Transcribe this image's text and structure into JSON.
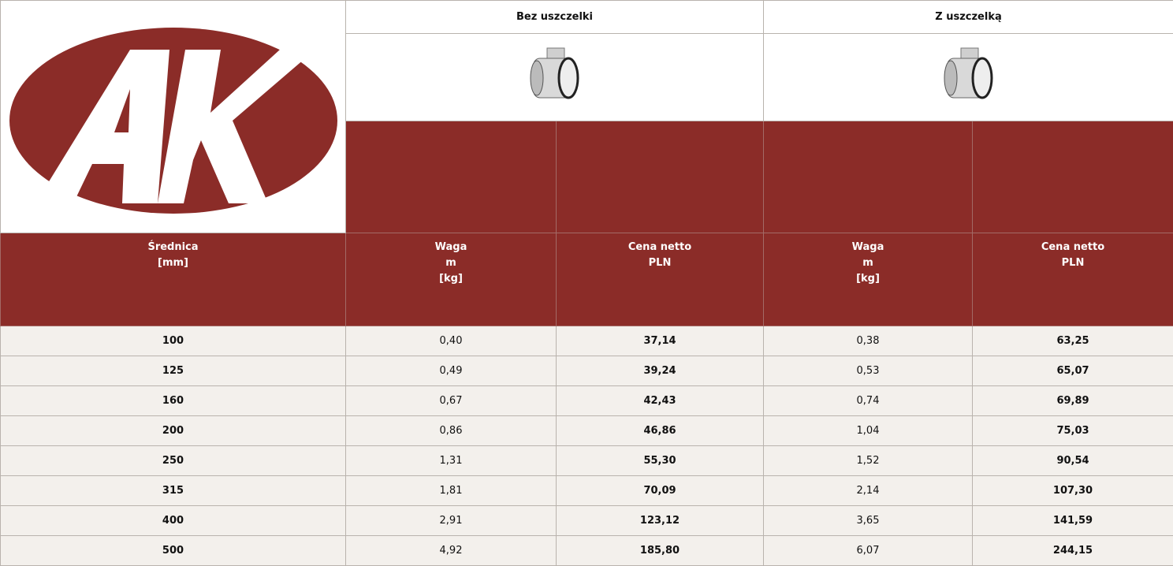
{
  "table": {
    "group_headers": [
      "Bez uszczelki",
      "Z uszczelką"
    ],
    "column_headers": [
      [
        "Średnica",
        "[mm]"
      ],
      [
        "Waga",
        "m",
        "[kg]"
      ],
      [
        "Cena netto",
        "PLN"
      ],
      [
        "Waga",
        "m",
        "[kg]"
      ],
      [
        "Cena netto",
        "PLN"
      ]
    ],
    "rows": [
      [
        "100",
        "0,40",
        "37,14",
        "0,38",
        "63,25"
      ],
      [
        "125",
        "0,49",
        "39,24",
        "0,53",
        "65,07"
      ],
      [
        "160",
        "0,67",
        "42,43",
        "0,74",
        "69,89"
      ],
      [
        "200",
        "0,86",
        "46,86",
        "1,04",
        "75,03"
      ],
      [
        "250",
        "1,31",
        "55,30",
        "1,52",
        "90,54"
      ],
      [
        "315",
        "1,81",
        "70,09",
        "2,14",
        "107,30"
      ],
      [
        "400",
        "2,91",
        "123,12",
        "3,65",
        "141,59"
      ],
      [
        "500",
        "4,92",
        "185,80",
        "6,07",
        "244,15"
      ]
    ]
  }
}
